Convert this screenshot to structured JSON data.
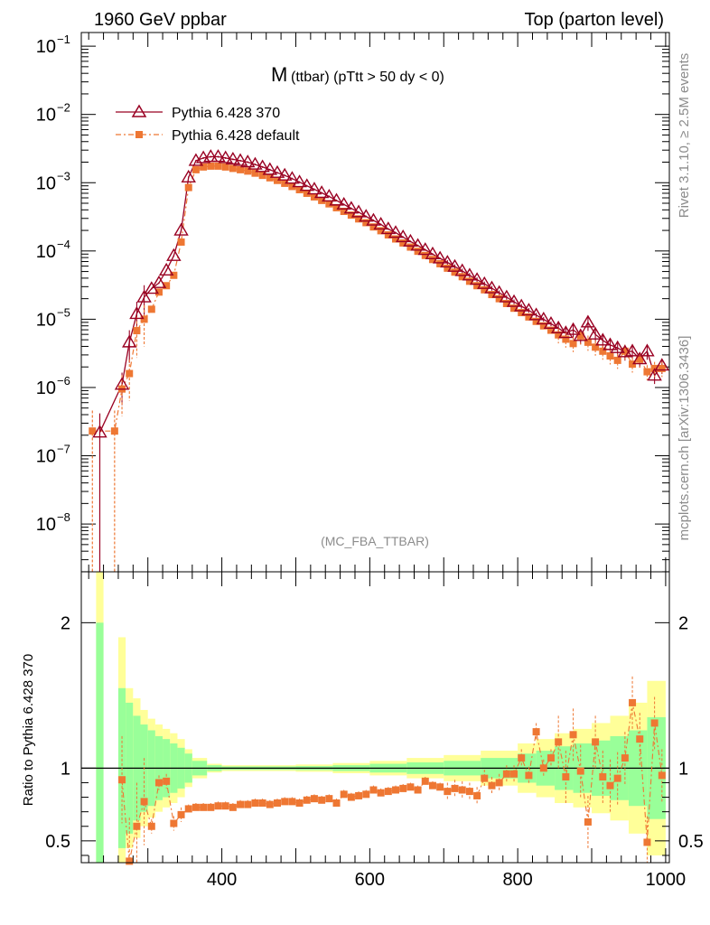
{
  "header": {
    "left": "1960 GeV ppbar",
    "right": "Top (parton level)"
  },
  "side": {
    "rivet": "Rivet 3.1.10, ≥ 2.5M events",
    "mcplots": "mcplots.cern.ch [arXiv:1306.3436]"
  },
  "title": {
    "main": "M",
    "sub": "(ttbar) (pTtt > 50 dy < 0)"
  },
  "watermark": "(MC_FBA_TTBAR)",
  "legend": {
    "ref": "Pythia 6.428 370",
    "mc": "Pythia 6.428 default"
  },
  "ratio_ylabel": "Ratio to Pythia 6.428 370",
  "colors": {
    "ref": "#990022",
    "mc": "#ee7733",
    "band_inner": "#99ff99",
    "band_outer": "#ffff99"
  },
  "chart_data": {
    "type": "line",
    "x_range": [
      210,
      1005
    ],
    "x_ticks": [
      "400",
      "600",
      "800",
      "1000"
    ],
    "x_tick_values": [
      400,
      600,
      800,
      1000
    ],
    "main": {
      "yscale": "log",
      "ylim_log10": [
        -8.7,
        -0.8
      ],
      "y_ticks": [
        {
          "label": "10",
          "exp": "−1",
          "value": 0.1
        },
        {
          "label": "10",
          "exp": "−2",
          "value": 0.01
        },
        {
          "label": "10",
          "exp": "−3",
          "value": 0.001
        },
        {
          "label": "10",
          "exp": "−4",
          "value": 0.0001
        },
        {
          "label": "10",
          "exp": "−5",
          "value": 1e-05
        },
        {
          "label": "10",
          "exp": "−6",
          "value": 1e-06
        },
        {
          "label": "10",
          "exp": "−7",
          "value": 1e-07
        },
        {
          "label": "10",
          "exp": "−8",
          "value": 1e-08
        }
      ],
      "series": [
        {
          "name": "Pythia 6.428 370",
          "x": [
            235,
            265,
            275,
            285,
            295,
            305,
            315,
            325,
            335,
            345,
            355,
            365,
            375,
            385,
            395,
            405,
            415,
            425,
            435,
            445,
            455,
            465,
            475,
            485,
            495,
            505,
            515,
            525,
            535,
            545,
            555,
            565,
            575,
            585,
            595,
            605,
            615,
            625,
            635,
            645,
            655,
            665,
            675,
            685,
            695,
            705,
            715,
            725,
            735,
            745,
            755,
            765,
            775,
            785,
            795,
            805,
            815,
            825,
            835,
            845,
            855,
            865,
            875,
            885,
            895,
            905,
            915,
            925,
            935,
            945,
            955,
            965,
            975,
            985,
            995
          ],
          "y": [
            2.2e-07,
            1.1e-06,
            4.6e-06,
            1.2e-05,
            2.1e-05,
            2.8e-05,
            3.4e-05,
            5.2e-05,
            8.5e-05,
            0.0002,
            0.0012,
            0.0021,
            0.0023,
            0.0024,
            0.0024,
            0.0023,
            0.0022,
            0.0021,
            0.002,
            0.00185,
            0.0017,
            0.00155,
            0.0014,
            0.00128,
            0.00115,
            0.00102,
            0.0009,
            0.0008,
            0.00071,
            0.00063,
            0.00055,
            0.00048,
            0.00042,
            0.00037,
            0.00032,
            0.00028,
            0.000245,
            0.00021,
            0.000185,
            0.00016,
            0.000138,
            0.00012,
            0.000104,
            9e-05,
            7.8e-05,
            6.8e-05,
            5.9e-05,
            5.1e-05,
            4.4e-05,
            3.8e-05,
            3.3e-05,
            2.85e-05,
            2.45e-05,
            2.1e-05,
            1.8e-05,
            1.55e-05,
            1.35e-05,
            1.15e-05,
            1e-05,
            8.6e-06,
            7.4e-06,
            6.3e-06,
            7e-06,
            5.7e-06,
            9e-06,
            6e-06,
            4.9e-06,
            4.2e-06,
            3.8e-06,
            3.3e-06,
            3.4e-06,
            2.6e-06,
            3.4e-06,
            1.5e-06,
            2.1e-06
          ]
        },
        {
          "name": "Pythia 6.428 default",
          "x": [
            225,
            255,
            265,
            275,
            285,
            295,
            305,
            315,
            325,
            335,
            345,
            355,
            365,
            375,
            385,
            395,
            405,
            415,
            425,
            435,
            445,
            455,
            465,
            475,
            485,
            495,
            505,
            515,
            525,
            535,
            545,
            555,
            565,
            575,
            585,
            595,
            605,
            615,
            625,
            635,
            645,
            655,
            665,
            675,
            685,
            695,
            705,
            715,
            725,
            735,
            745,
            755,
            765,
            775,
            785,
            795,
            805,
            815,
            825,
            835,
            845,
            855,
            865,
            875,
            885,
            895,
            905,
            915,
            925,
            935,
            945,
            955,
            965,
            975,
            985,
            995
          ],
          "y": [
            2.3e-07,
            2.3e-07,
            9.5e-07,
            1.6e-06,
            6.8e-06,
            1e-05,
            1.4e-05,
            2.5e-05,
            3.1e-05,
            4.4e-05,
            0.000135,
            0.00085,
            0.00155,
            0.0017,
            0.00175,
            0.00175,
            0.0017,
            0.00162,
            0.00155,
            0.00148,
            0.00138,
            0.00128,
            0.00118,
            0.00108,
            0.00098,
            0.00088,
            0.00079,
            0.0007,
            0.00062,
            0.00055,
            0.00049,
            0.00043,
            0.00038,
            0.000335,
            0.000295,
            0.00026,
            0.000225,
            0.000198,
            0.000172,
            0.00015,
            0.000131,
            0.000114,
            9.9e-05,
            8.6e-05,
            7.5e-05,
            6.5e-05,
            5.6e-05,
            4.9e-05,
            4.2e-05,
            3.6e-05,
            3.1e-05,
            2.7e-05,
            2.3e-05,
            2e-05,
            1.7e-05,
            1.45e-05,
            1.25e-05,
            1.08e-05,
            9.3e-06,
            8e-06,
            6.9e-06,
            5.9e-06,
            5.1e-06,
            4.4e-06,
            5.7e-06,
            4.6e-06,
            3.9e-06,
            3.4e-06,
            2.9e-06,
            2.5e-06,
            3.4e-06,
            2.2e-06,
            2.6e-06,
            1.7e-06,
            1.9e-06,
            1.9e-06
          ]
        }
      ]
    },
    "ratio": {
      "ylabel": "Ratio to Pythia 6.428 370",
      "ylim": [
        0.35,
        2.35
      ],
      "y_ticks": [
        0.5,
        1,
        2
      ],
      "y_tick_labels": [
        "0.5",
        "1",
        "2"
      ],
      "mc_ratio_x": [
        265,
        275,
        285,
        295,
        305,
        315,
        325,
        335,
        345,
        355,
        365,
        375,
        385,
        395,
        405,
        415,
        425,
        435,
        445,
        455,
        465,
        475,
        485,
        495,
        505,
        515,
        525,
        535,
        545,
        555,
        565,
        575,
        585,
        595,
        605,
        615,
        625,
        635,
        645,
        655,
        665,
        675,
        685,
        695,
        705,
        715,
        725,
        735,
        745,
        755,
        765,
        775,
        785,
        795,
        805,
        815,
        825,
        835,
        845,
        855,
        865,
        875,
        885,
        895,
        905,
        915,
        925,
        935,
        945,
        955,
        965,
        975,
        985,
        995
      ],
      "mc_ratio_y": [
        0.92,
        0.36,
        0.6,
        0.77,
        0.6,
        0.9,
        0.91,
        0.62,
        0.68,
        0.72,
        0.73,
        0.73,
        0.73,
        0.74,
        0.74,
        0.73,
        0.75,
        0.75,
        0.76,
        0.76,
        0.75,
        0.76,
        0.77,
        0.77,
        0.76,
        0.78,
        0.79,
        0.78,
        0.79,
        0.76,
        0.82,
        0.8,
        0.81,
        0.82,
        0.85,
        0.83,
        0.84,
        0.85,
        0.86,
        0.87,
        0.85,
        0.91,
        0.88,
        0.87,
        0.84,
        0.86,
        0.85,
        0.84,
        0.81,
        0.93,
        0.88,
        0.9,
        0.96,
        0.96,
        1.07,
        0.95,
        1.25,
        1.0,
        1.07,
        1.18,
        0.94,
        1.23,
        0.98,
        0.63,
        1.18,
        0.94,
        0.88,
        0.93,
        1.07,
        1.45,
        1.2,
        0.49,
        1.31,
        0.95
      ],
      "band_x_edges": [
        260,
        270,
        280,
        290,
        300,
        310,
        320,
        330,
        340,
        350,
        360,
        380,
        400,
        450,
        500,
        550,
        600,
        650,
        700,
        750,
        800,
        825,
        850,
        875,
        900,
        925,
        950,
        975,
        1000
      ],
      "band_inner_rel": [
        0.55,
        0.45,
        0.36,
        0.3,
        0.26,
        0.22,
        0.2,
        0.17,
        0.14,
        0.1,
        0.05,
        0.02,
        0.012,
        0.012,
        0.014,
        0.02,
        0.03,
        0.04,
        0.05,
        0.07,
        0.1,
        0.12,
        0.15,
        0.17,
        0.19,
        0.22,
        0.26,
        0.35
      ],
      "band_outer_rel": [
        0.9,
        0.55,
        0.48,
        0.4,
        0.34,
        0.3,
        0.27,
        0.24,
        0.2,
        0.13,
        0.07,
        0.03,
        0.02,
        0.02,
        0.025,
        0.035,
        0.05,
        0.07,
        0.09,
        0.12,
        0.17,
        0.2,
        0.24,
        0.27,
        0.31,
        0.36,
        0.45,
        0.6
      ]
    }
  }
}
